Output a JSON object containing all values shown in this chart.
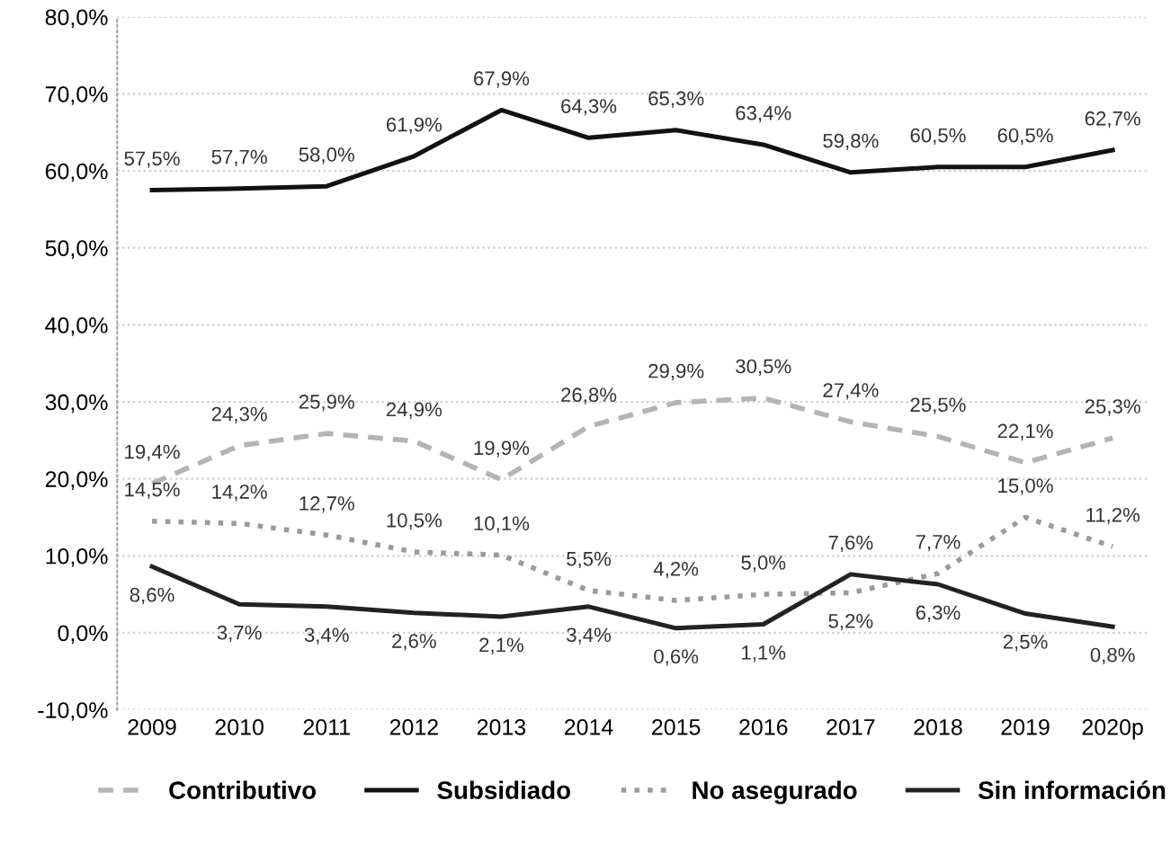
{
  "chart_data": {
    "type": "line",
    "categories": [
      "2009",
      "2010",
      "2011",
      "2012",
      "2013",
      "2014",
      "2015",
      "2016",
      "2017",
      "2018",
      "2019",
      "2020p"
    ],
    "series": [
      {
        "name": "Contributivo",
        "color": "#b4b4b4",
        "line_style": "dashed",
        "values": [
          19.4,
          24.3,
          25.9,
          24.9,
          19.9,
          26.8,
          29.9,
          30.5,
          27.4,
          25.5,
          22.1,
          25.3
        ],
        "value_labels": [
          "19,4%",
          "24,3%",
          "25,9%",
          "24,9%",
          "19,9%",
          "26,8%",
          "29,9%",
          "30,5%",
          "27,4%",
          "25,5%",
          "22,1%",
          "25,3%"
        ]
      },
      {
        "name": "Subsidiado",
        "color": "#111111",
        "line_style": "solid",
        "values": [
          57.5,
          57.7,
          58.0,
          61.9,
          67.9,
          64.3,
          65.3,
          63.4,
          59.8,
          60.5,
          60.5,
          62.7
        ],
        "value_labels": [
          "57,5%",
          "57,7%",
          "58,0%",
          "61,9%",
          "67,9%",
          "64,3%",
          "65,3%",
          "63,4%",
          "59,8%",
          "60,5%",
          "60,5%",
          "62,7%"
        ]
      },
      {
        "name": "No asegurado",
        "color": "#9a9a9a",
        "line_style": "dotted",
        "values": [
          14.5,
          14.2,
          12.7,
          10.5,
          10.1,
          5.5,
          4.2,
          5.0,
          5.2,
          7.7,
          15.0,
          11.2
        ],
        "value_labels": [
          "14,5%",
          "14,2%",
          "12,7%",
          "10,5%",
          "10,1%",
          "5,5%",
          "4,2%",
          "5,0%",
          "5,2%",
          "7,7%",
          "15,0%",
          "11,2%"
        ]
      },
      {
        "name": "Sin información",
        "color": "#222222",
        "line_style": "solid",
        "values": [
          8.6,
          3.7,
          3.4,
          2.6,
          2.1,
          3.4,
          0.6,
          1.1,
          7.6,
          6.3,
          2.5,
          0.8
        ],
        "value_labels": [
          "8,6%",
          "3,7%",
          "3,4%",
          "2,6%",
          "2,1%",
          "3,4%",
          "0,6%",
          "1,1%",
          "7,6%",
          "6,3%",
          "2,5%",
          "0,8%"
        ]
      }
    ],
    "ylim": [
      -10,
      80
    ],
    "yticks": [
      {
        "value": -10,
        "label": "-10,0%"
      },
      {
        "value": 0,
        "label": "0,0%"
      },
      {
        "value": 10,
        "label": "10,0%"
      },
      {
        "value": 20,
        "label": "20,0%"
      },
      {
        "value": 30,
        "label": "30,0%"
      },
      {
        "value": 40,
        "label": "40,0%"
      },
      {
        "value": 50,
        "label": "50,0%"
      },
      {
        "value": 60,
        "label": "60,0%"
      },
      {
        "value": 70,
        "label": "70,0%"
      },
      {
        "value": 80,
        "label": "80,0%"
      }
    ],
    "grid": "y",
    "legend": "bottom",
    "marker": "none"
  }
}
